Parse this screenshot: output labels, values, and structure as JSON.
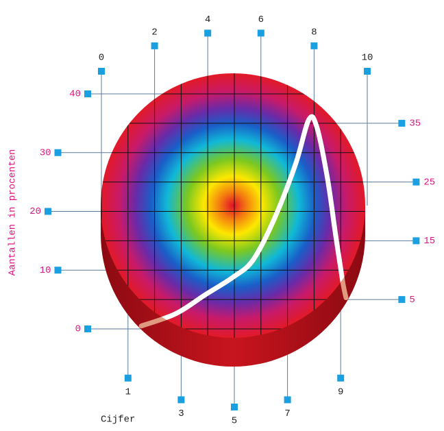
{
  "chart_data": {
    "type": "line",
    "xlabel": "Cijfer",
    "ylabel": "Aantallen in procenten",
    "xlim": [
      0,
      10
    ],
    "xticks": [
      0,
      1,
      2,
      3,
      4,
      5,
      6,
      7,
      8,
      9,
      10
    ],
    "ylim": [
      0,
      40
    ],
    "yticks": [
      0,
      5,
      10,
      15,
      20,
      25,
      30,
      35,
      40
    ],
    "grid": true,
    "series": [
      {
        "color": "#ffffff",
        "x": [
          1.5,
          2.8,
          3.9,
          4.95,
          5.7,
          6.5,
          7.3,
          7.8,
          8.1,
          8.5,
          8.8,
          9.07,
          9.2
        ],
        "values": [
          0.5,
          2.6,
          5.8,
          8.8,
          11.7,
          18.7,
          28,
          35.6,
          34.4,
          25.7,
          16.3,
          8.2,
          5.3
        ]
      }
    ]
  }
}
